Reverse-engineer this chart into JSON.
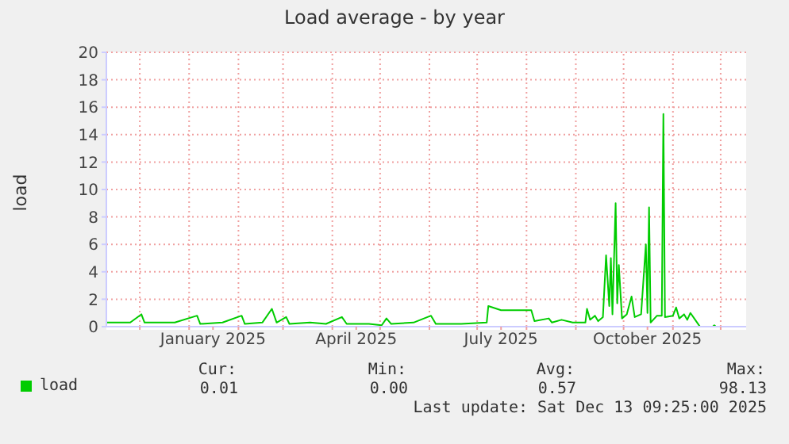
{
  "chart_data": {
    "type": "line",
    "title": "Load average - by year",
    "ylabel": "load",
    "x": [
      "2024-11-10",
      "2024-11-18",
      "2024-11-25",
      "2024-12-02",
      "2024-12-04",
      "2024-12-13",
      "2024-12-23",
      "2025-01-06",
      "2025-01-08",
      "2025-01-22",
      "2025-02-03",
      "2025-02-05",
      "2025-02-16",
      "2025-02-22",
      "2025-02-25",
      "2025-03-03",
      "2025-03-05",
      "2025-03-18",
      "2025-03-28",
      "2025-04-07",
      "2025-04-10",
      "2025-04-24",
      "2025-05-02",
      "2025-05-05",
      "2025-05-08",
      "2025-05-22",
      "2025-06-02",
      "2025-06-05",
      "2025-06-21",
      "2025-07-07",
      "2025-07-08",
      "2025-07-16",
      "2025-07-26",
      "2025-08-04",
      "2025-08-06",
      "2025-08-15",
      "2025-08-17",
      "2025-08-23",
      "2025-08-30",
      "2025-09-07",
      "2025-09-08",
      "2025-09-10",
      "2025-09-13",
      "2025-09-15",
      "2025-09-18",
      "2025-09-20",
      "2025-09-22",
      "2025-09-23",
      "2025-09-24",
      "2025-09-26",
      "2025-09-27",
      "2025-09-28",
      "2025-09-30",
      "2025-10-03",
      "2025-10-06",
      "2025-10-08",
      "2025-10-12",
      "2025-10-15",
      "2025-10-16",
      "2025-10-17",
      "2025-10-18",
      "2025-10-22",
      "2025-10-25",
      "2025-10-26",
      "2025-10-27",
      "2025-11-01",
      "2025-11-03",
      "2025-11-05",
      "2025-11-08",
      "2025-11-10",
      "2025-11-12",
      "2025-11-15",
      "2025-11-18",
      "2025-11-26",
      "2025-11-27",
      "2025-11-28",
      "2025-12-13"
    ],
    "series": [
      {
        "name": "load",
        "color": "#00cc00",
        "values": [
          0.3,
          0.3,
          0.3,
          0.9,
          0.3,
          0.3,
          0.3,
          0.8,
          0.2,
          0.3,
          0.8,
          0.2,
          0.3,
          1.3,
          0.3,
          0.7,
          0.2,
          0.3,
          0.2,
          0.7,
          0.2,
          0.2,
          0.1,
          0.6,
          0.2,
          0.3,
          0.8,
          0.2,
          0.2,
          0.3,
          1.5,
          1.2,
          1.2,
          1.2,
          0.4,
          0.6,
          0.3,
          0.5,
          0.3,
          0.3,
          1.3,
          0.5,
          0.8,
          0.4,
          0.7,
          5.2,
          1.5,
          5.0,
          0.9,
          9.0,
          1.7,
          4.5,
          0.6,
          0.9,
          2.2,
          0.7,
          0.9,
          6.0,
          1.0,
          8.7,
          0.3,
          0.8,
          0.8,
          15.5,
          0.7,
          0.8,
          1.4,
          0.6,
          0.9,
          0.5,
          1.0,
          0.5,
          0.0,
          0.0,
          0.1,
          0.0,
          0.0
        ]
      }
    ],
    "xlim": [
      "2024-11-10",
      "2025-12-17"
    ],
    "xticks": [
      {
        "value": "2024-12-01",
        "label": null
      },
      {
        "value": "2025-01-01",
        "label": null
      },
      {
        "value": "2025-01-16",
        "label": "January 2025"
      },
      {
        "value": "2025-02-01",
        "label": null
      },
      {
        "value": "2025-03-01",
        "label": null
      },
      {
        "value": "2025-04-01",
        "label": null
      },
      {
        "value": "2025-04-16",
        "label": "April 2025"
      },
      {
        "value": "2025-05-01",
        "label": null
      },
      {
        "value": "2025-06-01",
        "label": null
      },
      {
        "value": "2025-07-01",
        "label": null
      },
      {
        "value": "2025-07-16",
        "label": "July 2025"
      },
      {
        "value": "2025-08-01",
        "label": null
      },
      {
        "value": "2025-09-01",
        "label": null
      },
      {
        "value": "2025-10-01",
        "label": null
      },
      {
        "value": "2025-10-16",
        "label": "October 2025"
      },
      {
        "value": "2025-11-01",
        "label": null
      },
      {
        "value": "2025-12-01",
        "label": null
      }
    ],
    "ylim": [
      0,
      20
    ],
    "yticks": [
      0,
      2,
      4,
      6,
      8,
      10,
      12,
      14,
      16,
      18,
      20
    ],
    "grid": true,
    "legend": "bottom",
    "marker": "none",
    "line_style": "solid",
    "annotations": [
      "Cur:",
      "Min:",
      "Avg:",
      "Max:",
      "0.01",
      "0.00",
      "0.57",
      "98.13",
      "Last update: Sat Dec 13 09:25:00 2025"
    ]
  }
}
